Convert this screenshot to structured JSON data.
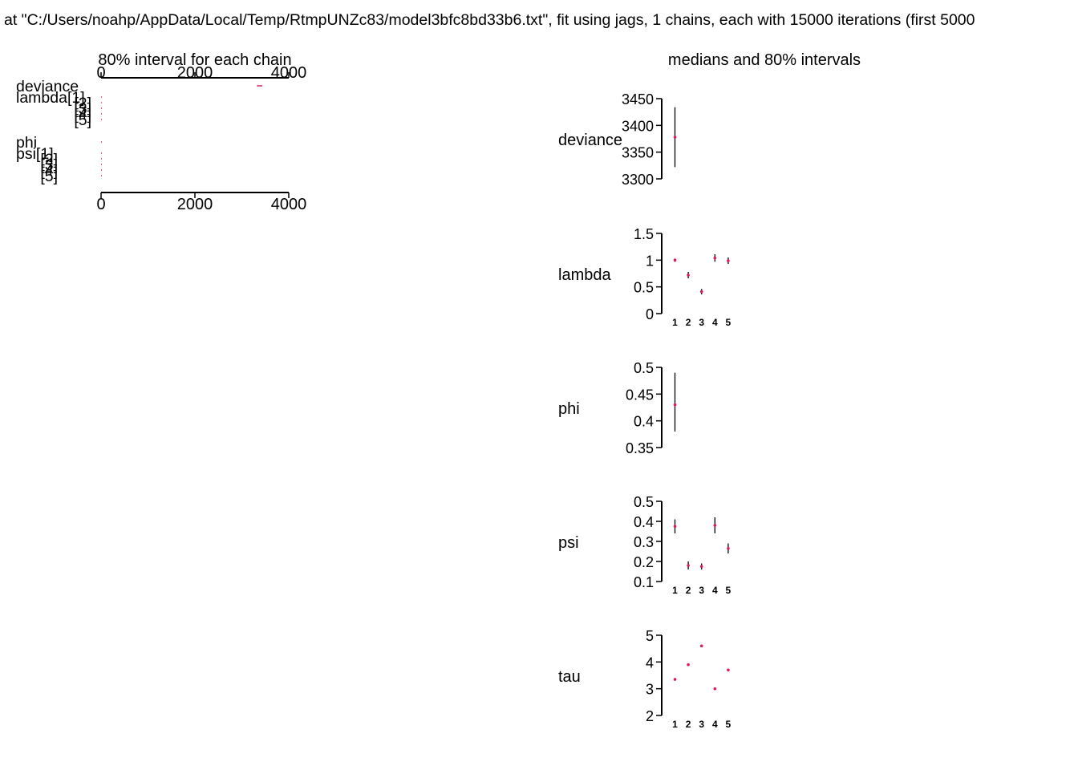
{
  "header": "at \"C:/Users/noahp/AppData/Local/Temp/RtmpUNZc83/model3bfc8bd33b6.txt\", fit using jags, 1 chains, each with 15000 iterations (first 5000",
  "colors": {
    "median": "#e0195a",
    "interval": "#000000",
    "axis": "#000000"
  },
  "chart_data": [
    {
      "type": "interval",
      "title": "80% interval for each chain",
      "xlim": [
        0,
        4000
      ],
      "xticks": [
        0,
        2000,
        4000
      ],
      "parameters": [
        {
          "label": "deviance",
          "low": 3322,
          "median": 3378,
          "high": 3434
        },
        {
          "label": "lambda[1]",
          "low": 0.97,
          "median": 1.0,
          "high": 1.03
        },
        {
          "label": "[2]",
          "low": 0.66,
          "median": 0.72,
          "high": 0.78
        },
        {
          "label": "[3]",
          "low": 0.36,
          "median": 0.41,
          "high": 0.46
        },
        {
          "label": "[4]",
          "low": 0.97,
          "median": 1.04,
          "high": 1.11
        },
        {
          "label": "[5]",
          "low": 0.93,
          "median": 0.99,
          "high": 1.05
        },
        {
          "label": "phi",
          "low": 0.38,
          "median": 0.43,
          "high": 0.49
        },
        {
          "label": "psi[1]",
          "low": 0.34,
          "median": 0.375,
          "high": 0.41
        },
        {
          "label": "[2]",
          "low": 0.16,
          "median": 0.18,
          "high": 0.2
        },
        {
          "label": "[3]",
          "low": 0.16,
          "median": 0.175,
          "high": 0.19
        },
        {
          "label": "[4]",
          "low": 0.34,
          "median": 0.38,
          "high": 0.42
        },
        {
          "label": "[5]",
          "low": 0.24,
          "median": 0.265,
          "high": 0.29
        }
      ]
    },
    {
      "type": "interval",
      "title": "medians and 80% intervals",
      "panels": [
        {
          "name": "deviance",
          "ylim": [
            3300,
            3450
          ],
          "yticks": [
            3300,
            3350,
            3400,
            3450
          ],
          "xticklabels": [],
          "values": [
            {
              "low": 3322,
              "median": 3378,
              "high": 3434
            }
          ]
        },
        {
          "name": "lambda",
          "ylim": [
            0,
            1.5
          ],
          "yticks": [
            0,
            0.5,
            1,
            1.5
          ],
          "xticklabels": [
            "1",
            "2",
            "3",
            "4",
            "5"
          ],
          "values": [
            {
              "low": 0.97,
              "median": 1.0,
              "high": 1.03
            },
            {
              "low": 0.66,
              "median": 0.72,
              "high": 0.78
            },
            {
              "low": 0.36,
              "median": 0.41,
              "high": 0.46
            },
            {
              "low": 0.97,
              "median": 1.04,
              "high": 1.11
            },
            {
              "low": 0.93,
              "median": 0.99,
              "high": 1.05
            }
          ]
        },
        {
          "name": "phi",
          "ylim": [
            0.35,
            0.5
          ],
          "yticks": [
            0.35,
            0.4,
            0.45,
            0.5
          ],
          "xticklabels": [],
          "values": [
            {
              "low": 0.38,
              "median": 0.43,
              "high": 0.49
            }
          ]
        },
        {
          "name": "psi",
          "ylim": [
            0.1,
            0.5
          ],
          "yticks": [
            0.1,
            0.2,
            0.3,
            0.4,
            0.5
          ],
          "xticklabels": [
            "1",
            "2",
            "3",
            "4",
            "5"
          ],
          "values": [
            {
              "low": 0.34,
              "median": 0.375,
              "high": 0.41
            },
            {
              "low": 0.16,
              "median": 0.18,
              "high": 0.2
            },
            {
              "low": 0.16,
              "median": 0.175,
              "high": 0.19
            },
            {
              "low": 0.34,
              "median": 0.38,
              "high": 0.42
            },
            {
              "low": 0.24,
              "median": 0.265,
              "high": 0.29
            }
          ]
        },
        {
          "name": "tau",
          "ylim": [
            2,
            5
          ],
          "yticks": [
            2,
            3,
            4,
            5
          ],
          "xticklabels": [
            "1",
            "2",
            "3",
            "4",
            "5"
          ],
          "values": [
            {
              "low": 3.3,
              "median": 3.35,
              "high": 3.4
            },
            {
              "low": 3.85,
              "median": 3.9,
              "high": 3.95
            },
            {
              "low": 4.55,
              "median": 4.6,
              "high": 4.65
            },
            {
              "low": 2.95,
              "median": 3.0,
              "high": 3.05
            },
            {
              "low": 3.65,
              "median": 3.7,
              "high": 3.75
            }
          ]
        }
      ]
    }
  ]
}
